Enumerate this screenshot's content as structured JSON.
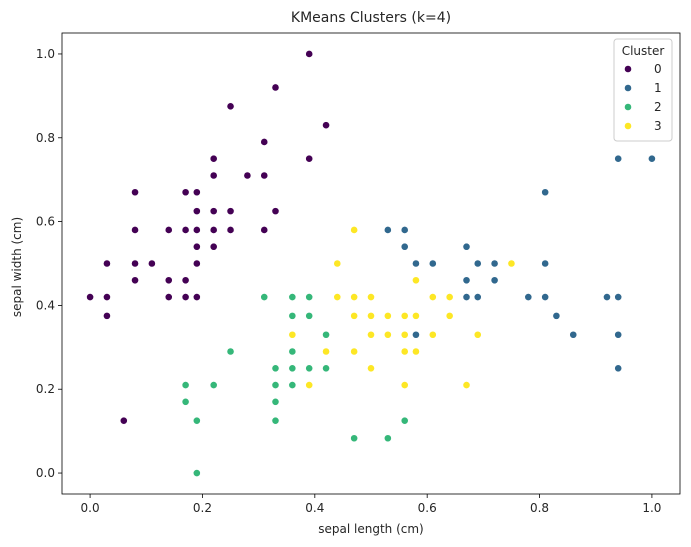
{
  "chart_data": {
    "type": "scatter",
    "title": "KMeans Clusters (k=4)",
    "xlabel": "sepal length (cm)",
    "ylabel": "sepal width (cm)",
    "xlim": [
      -0.05,
      1.05
    ],
    "ylim": [
      -0.05,
      1.05
    ],
    "xticks": [
      0.0,
      0.2,
      0.4,
      0.6,
      0.8,
      1.0
    ],
    "yticks": [
      0.0,
      0.2,
      0.4,
      0.6,
      0.8,
      1.0
    ],
    "xtick_labels": [
      "0.0",
      "0.2",
      "0.4",
      "0.6",
      "0.8",
      "1.0"
    ],
    "ytick_labels": [
      "0.0",
      "0.2",
      "0.4",
      "0.6",
      "0.8",
      "1.0"
    ],
    "grid": false,
    "legend": {
      "title": "Cluster",
      "placement": "top-right"
    },
    "series": [
      {
        "name": "0",
        "color": "#440154",
        "points": [
          [
            0.39,
            1.0
          ],
          [
            0.33,
            0.92
          ],
          [
            0.25,
            0.875
          ],
          [
            0.42,
            0.83
          ],
          [
            0.31,
            0.79
          ],
          [
            0.22,
            0.75
          ],
          [
            0.39,
            0.75
          ],
          [
            0.22,
            0.71
          ],
          [
            0.28,
            0.71
          ],
          [
            0.31,
            0.71
          ],
          [
            0.08,
            0.67
          ],
          [
            0.17,
            0.67
          ],
          [
            0.19,
            0.67
          ],
          [
            0.08,
            0.58
          ],
          [
            0.14,
            0.58
          ],
          [
            0.17,
            0.58
          ],
          [
            0.19,
            0.625
          ],
          [
            0.22,
            0.625
          ],
          [
            0.25,
            0.625
          ],
          [
            0.33,
            0.625
          ],
          [
            0.19,
            0.58
          ],
          [
            0.22,
            0.58
          ],
          [
            0.25,
            0.58
          ],
          [
            0.31,
            0.58
          ],
          [
            0.19,
            0.54
          ],
          [
            0.22,
            0.54
          ],
          [
            0.03,
            0.5
          ],
          [
            0.08,
            0.5
          ],
          [
            0.11,
            0.5
          ],
          [
            0.19,
            0.5
          ],
          [
            0.08,
            0.46
          ],
          [
            0.14,
            0.46
          ],
          [
            0.17,
            0.46
          ],
          [
            0.0,
            0.42
          ],
          [
            0.03,
            0.42
          ],
          [
            0.14,
            0.42
          ],
          [
            0.17,
            0.42
          ],
          [
            0.19,
            0.42
          ],
          [
            0.03,
            0.375
          ],
          [
            0.06,
            0.125
          ]
        ]
      },
      {
        "name": "1",
        "color": "#31688e",
        "points": [
          [
            0.94,
            0.75
          ],
          [
            1.0,
            0.75
          ],
          [
            0.81,
            0.67
          ],
          [
            0.53,
            0.58
          ],
          [
            0.56,
            0.58
          ],
          [
            0.56,
            0.54
          ],
          [
            0.67,
            0.54
          ],
          [
            0.58,
            0.5
          ],
          [
            0.61,
            0.5
          ],
          [
            0.69,
            0.5
          ],
          [
            0.72,
            0.5
          ],
          [
            0.81,
            0.5
          ],
          [
            0.67,
            0.46
          ],
          [
            0.72,
            0.46
          ],
          [
            0.67,
            0.42
          ],
          [
            0.69,
            0.42
          ],
          [
            0.78,
            0.42
          ],
          [
            0.81,
            0.42
          ],
          [
            0.92,
            0.42
          ],
          [
            0.94,
            0.42
          ],
          [
            0.83,
            0.375
          ],
          [
            0.58,
            0.33
          ],
          [
            0.86,
            0.33
          ],
          [
            0.94,
            0.33
          ],
          [
            0.94,
            0.25
          ]
        ]
      },
      {
        "name": "2",
        "color": "#35b779",
        "points": [
          [
            0.31,
            0.42
          ],
          [
            0.36,
            0.42
          ],
          [
            0.39,
            0.42
          ],
          [
            0.36,
            0.375
          ],
          [
            0.39,
            0.375
          ],
          [
            0.42,
            0.33
          ],
          [
            0.36,
            0.29
          ],
          [
            0.25,
            0.29
          ],
          [
            0.33,
            0.25
          ],
          [
            0.36,
            0.25
          ],
          [
            0.39,
            0.25
          ],
          [
            0.42,
            0.25
          ],
          [
            0.17,
            0.21
          ],
          [
            0.22,
            0.21
          ],
          [
            0.33,
            0.21
          ],
          [
            0.36,
            0.21
          ],
          [
            0.17,
            0.17
          ],
          [
            0.33,
            0.17
          ],
          [
            0.19,
            0.125
          ],
          [
            0.33,
            0.125
          ],
          [
            0.56,
            0.125
          ],
          [
            0.47,
            0.083
          ],
          [
            0.53,
            0.083
          ],
          [
            0.19,
            0.0
          ]
        ]
      },
      {
        "name": "3",
        "color": "#fde725",
        "points": [
          [
            0.47,
            0.58
          ],
          [
            0.44,
            0.5
          ],
          [
            0.75,
            0.5
          ],
          [
            0.58,
            0.46
          ],
          [
            0.44,
            0.42
          ],
          [
            0.47,
            0.42
          ],
          [
            0.5,
            0.42
          ],
          [
            0.61,
            0.42
          ],
          [
            0.64,
            0.42
          ],
          [
            0.47,
            0.375
          ],
          [
            0.5,
            0.375
          ],
          [
            0.53,
            0.375
          ],
          [
            0.56,
            0.375
          ],
          [
            0.58,
            0.375
          ],
          [
            0.64,
            0.375
          ],
          [
            0.36,
            0.33
          ],
          [
            0.5,
            0.33
          ],
          [
            0.53,
            0.33
          ],
          [
            0.56,
            0.33
          ],
          [
            0.61,
            0.33
          ],
          [
            0.69,
            0.33
          ],
          [
            0.42,
            0.29
          ],
          [
            0.47,
            0.29
          ],
          [
            0.56,
            0.29
          ],
          [
            0.58,
            0.29
          ],
          [
            0.5,
            0.25
          ],
          [
            0.39,
            0.21
          ],
          [
            0.56,
            0.21
          ],
          [
            0.67,
            0.21
          ]
        ]
      }
    ]
  }
}
